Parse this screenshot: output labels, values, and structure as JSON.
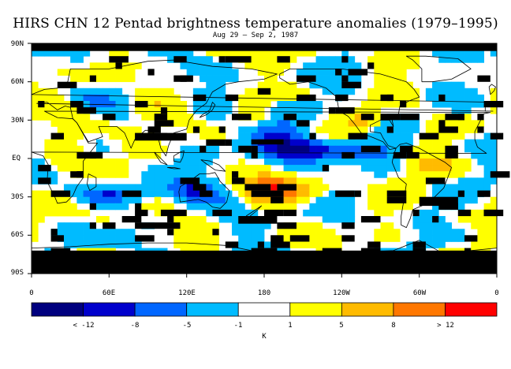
{
  "title": "HIRS CHN 12 Pentad brightness temperature anomalies (1979–1995)",
  "subtitle": "Aug 29 – Sep 2, 1987",
  "lat_labels": [
    "90N",
    "60N",
    "30N",
    "EQ",
    "30S",
    "60S",
    "90S"
  ],
  "lon_labels": [
    "0",
    "60E",
    "120E",
    "180",
    "120W",
    "60W",
    "0"
  ],
  "colorbar": {
    "labels": [
      "< -12",
      "-8",
      "-5",
      "-1",
      "1",
      "5",
      "8",
      "> 12"
    ],
    "colors": [
      "#00007f",
      "#0000cc",
      "#0066ff",
      "#00bbff",
      "#ffffff",
      "#ffff00",
      "#ffbb00",
      "#ff7700",
      "#ff0000"
    ],
    "units": "K"
  },
  "colors": {
    "missing": "#000000",
    "coast": "#000000",
    "frame": "#000000"
  }
}
